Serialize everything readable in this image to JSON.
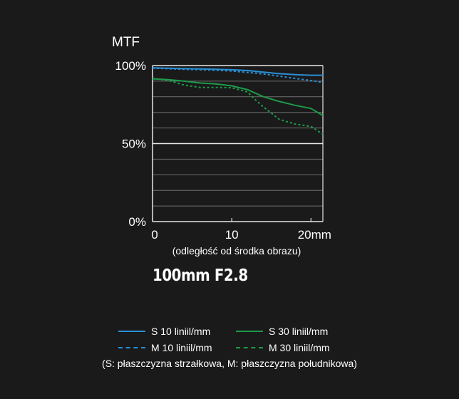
{
  "chart_data": {
    "type": "line",
    "title": "MTF",
    "xlabel": "(odległość od środka obrazu)",
    "ylabel": "",
    "xlim": [
      0,
      21.5
    ],
    "ylim": [
      0,
      100
    ],
    "x_ticks": [
      {
        "value": 0,
        "label": "0"
      },
      {
        "value": 10,
        "label": "10"
      },
      {
        "value": 20,
        "label": "20mm"
      }
    ],
    "y_ticks": [
      {
        "value": 0,
        "label": "0%"
      },
      {
        "value": 50,
        "label": "50%"
      },
      {
        "value": 100,
        "label": "100%"
      }
    ],
    "grid_step": 10,
    "grid": true,
    "series": [
      {
        "name": "S 10 liniil/mm",
        "color": "#2a8fd6",
        "dash": "solid",
        "x": [
          0,
          2,
          4,
          6,
          8,
          10,
          12,
          14,
          16,
          18,
          20,
          21.5
        ],
        "y": [
          98.5,
          98.3,
          98,
          97.8,
          97.6,
          97.3,
          96.8,
          95.8,
          94.8,
          94.2,
          93.8,
          93.8
        ]
      },
      {
        "name": "M 10 liniil/mm",
        "color": "#2a8fd6",
        "dash": "dashed",
        "x": [
          0,
          2,
          4,
          6,
          8,
          10,
          12,
          14,
          16,
          18,
          20,
          21.5
        ],
        "y": [
          98.3,
          98,
          97.6,
          97.3,
          97,
          96.5,
          95.6,
          94.6,
          93.2,
          91.8,
          90.4,
          89.2
        ]
      },
      {
        "name": "S 30 liniil/mm",
        "color": "#1e9a4a",
        "dash": "solid",
        "x": [
          0,
          2,
          4,
          6,
          8,
          10,
          12,
          14,
          16,
          18,
          20,
          21.5
        ],
        "y": [
          91.5,
          91,
          90,
          88.8,
          88.2,
          87,
          84.5,
          80,
          77,
          74.5,
          72.5,
          68
        ]
      },
      {
        "name": "M 30 liniil/mm",
        "color": "#1e9a4a",
        "dash": "dashed",
        "x": [
          0,
          2,
          4,
          6,
          8,
          10,
          12,
          13,
          14,
          16,
          18,
          20,
          21.5
        ],
        "y": [
          91.8,
          90.5,
          87.5,
          86,
          86,
          85.8,
          83,
          78,
          73.5,
          65.5,
          62.5,
          61,
          56
        ]
      }
    ]
  },
  "lens_title": "100mm F2.8",
  "legend": {
    "items": [
      {
        "label": "S 10 liniil/mm",
        "color": "#2a8fd6",
        "dash": "solid"
      },
      {
        "label": "S 30 liniil/mm",
        "color": "#1e9a4a",
        "dash": "solid"
      },
      {
        "label": "M 10 liniil/mm",
        "color": "#2a8fd6",
        "dash": "dashed"
      },
      {
        "label": "M 30 liniil/mm",
        "color": "#1e9a4a",
        "dash": "dashed"
      }
    ],
    "note": "(S: płaszczyzna strzałkowa, M: płaszczyzna południkowa)"
  }
}
